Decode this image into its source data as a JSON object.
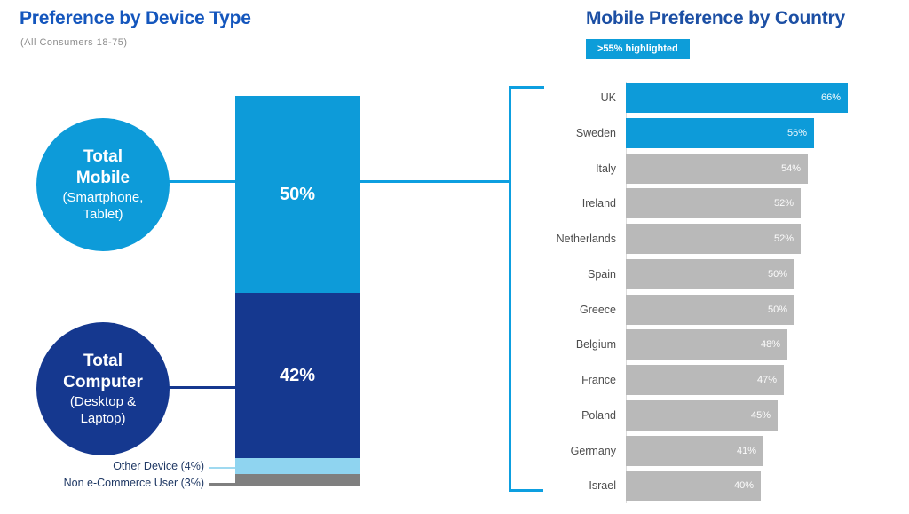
{
  "left_chart": {
    "title": "Preference by Device Type",
    "subtitle": "(All Consumers 18-75)",
    "bubbles": [
      {
        "line1": "Total",
        "line2": "Mobile",
        "line3": "(Smartphone,",
        "line4": "Tablet)",
        "color": "#0d9bd9"
      },
      {
        "line1": "Total",
        "line2": "Computer",
        "line3": "(Desktop &",
        "line4": "Laptop)",
        "color": "#15388f"
      }
    ],
    "callouts": [
      {
        "label": "Other Device (4%)"
      },
      {
        "label": "Non e-Commerce User (3%)"
      }
    ]
  },
  "right_chart": {
    "title": "Mobile Preference by Country",
    "badge": ">55% highlighted"
  },
  "colors": {
    "accent_cyan": "#0d9bd9",
    "navy": "#15388f",
    "light_blue": "#8fd4f0",
    "dark_gray": "#7f7f7f",
    "bar_gray": "#b9b9b9",
    "title_blue_left": "#1456bd",
    "title_blue_right": "#1c4fa4"
  },
  "chart_data": [
    {
      "type": "bar",
      "variant": "stacked-vertical",
      "title": "Preference by Device Type",
      "subtitle": "(All Consumers 18-75)",
      "total": 99,
      "segments": [
        {
          "label": "Total Mobile (Smartphone, Tablet)",
          "value": 50,
          "color": "#0d9bd9"
        },
        {
          "label": "Total Computer (Desktop & Laptop)",
          "value": 42,
          "color": "#15388f"
        },
        {
          "label": "Other Device",
          "value": 4,
          "color": "#8fd4f0"
        },
        {
          "label": "Non e-Commerce User",
          "value": 3,
          "color": "#7f7f7f"
        }
      ]
    },
    {
      "type": "bar",
      "variant": "horizontal",
      "title": "Mobile Preference by Country",
      "note": ">55% highlighted",
      "categories": [
        "UK",
        "Sweden",
        "Italy",
        "Ireland",
        "Netherlands",
        "Spain",
        "Greece",
        "Belgium",
        "France",
        "Poland",
        "Germany",
        "Israel"
      ],
      "values": [
        66,
        56,
        54,
        52,
        52,
        50,
        50,
        48,
        47,
        45,
        41,
        40
      ],
      "highlight_threshold": 55,
      "highlight_color": "#0d9bd9",
      "bar_color": "#b9b9b9",
      "xlim": [
        0,
        70
      ],
      "value_suffix": "%",
      "grid": false,
      "legend": false
    }
  ]
}
